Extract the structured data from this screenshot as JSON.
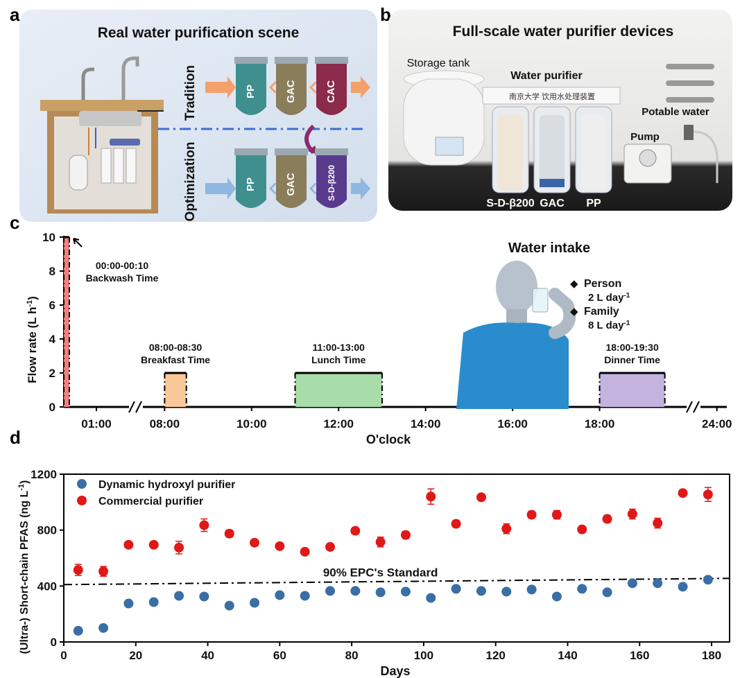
{
  "panel_a": {
    "letter": "a",
    "title": "Real water purification scene",
    "row_top_label": "Tradition",
    "row_bottom_label": "Optimization",
    "top_filters": [
      "PP",
      "GAC",
      "CAC"
    ],
    "bottom_filters": [
      "PP",
      "GAC",
      "S-D-β200"
    ],
    "colors": {
      "pp": "#3f8f8f",
      "gac": "#8a7d5a",
      "cac": "#8b2a4b",
      "sdb": "#5a3a8c",
      "arrow_top": "#f4a06a",
      "arrow_bottom": "#8fb7df"
    }
  },
  "panel_b": {
    "letter": "b",
    "title": "Full-scale water purifier devices",
    "labels": {
      "storage_tank": "Storage tank",
      "water_purifier": "Water purifier",
      "potable_water": "Potable water",
      "pump": "Pump",
      "cart1": "S-D-β200",
      "cart2": "GAC",
      "cart3": "PP"
    },
    "device_header": "南京大学  饮用水处理装置"
  },
  "chart_data": [
    {
      "type": "area",
      "panel": "c",
      "letter": "c",
      "ylabel": "Flow rate (L h",
      "ylabel_sup": "-1",
      "ylabel_close": ")",
      "xlabel": "O'clock",
      "ylim": [
        0,
        10
      ],
      "yticks": [
        "0",
        "2",
        "4",
        "6",
        "8",
        "10"
      ],
      "xticks": [
        "01:00",
        "08:00",
        "10:00",
        "12:00",
        "14:00",
        "16:00",
        "18:00",
        "24:00"
      ],
      "blocks": [
        {
          "label_time": "00:00-00:10",
          "label_name": "Backwash Time",
          "start_h": 0.0,
          "end_h": 0.167,
          "value": 10,
          "color": "#f08080"
        },
        {
          "label_time": "08:00-08:30",
          "label_name": "Breakfast Time",
          "start_h": 8.0,
          "end_h": 8.5,
          "value": 2,
          "color": "#f8c89a"
        },
        {
          "label_time": "11:00-13:00",
          "label_name": "Lunch Time",
          "start_h": 11.0,
          "end_h": 13.0,
          "value": 2,
          "color": "#a8dca8"
        },
        {
          "label_time": "18:00-19:30",
          "label_name": "Dinner Time",
          "start_h": 18.0,
          "end_h": 19.5,
          "value": 2,
          "color": "#c3b3de"
        }
      ],
      "intake": {
        "title": "Water intake",
        "person_label": "Person",
        "person_value": "2 L day",
        "family_label": "Family",
        "family_value": "8 L day",
        "unit_sup": "-1",
        "bullet": "◆"
      }
    },
    {
      "type": "scatter",
      "panel": "d",
      "letter": "d",
      "title": "",
      "xlabel": "Days",
      "ylabel": "(Ultra-) Short-chain PFAS (ng L",
      "ylabel_sup": "-1",
      "ylabel_close": ")",
      "xlim": [
        0,
        185
      ],
      "ylim": [
        0,
        1200
      ],
      "xticks": [
        0,
        20,
        40,
        60,
        80,
        100,
        120,
        140,
        160,
        180
      ],
      "yticks": [
        0,
        400,
        800,
        1200
      ],
      "standard": {
        "label": "90% EPC's Standard",
        "value": 440
      },
      "series": [
        {
          "name": "Dynamic hydroxyl purifier",
          "color": "#3a6ea5",
          "x": [
            4,
            11,
            18,
            25,
            32,
            39,
            46,
            53,
            60,
            67,
            74,
            81,
            88,
            95,
            102,
            109,
            116,
            123,
            130,
            137,
            144,
            151,
            158,
            165,
            172,
            179
          ],
          "y": [
            80,
            100,
            275,
            285,
            330,
            325,
            260,
            280,
            335,
            330,
            365,
            365,
            355,
            360,
            315,
            380,
            365,
            360,
            375,
            325,
            380,
            355,
            420,
            420,
            395,
            445
          ],
          "err": [
            10,
            10,
            10,
            10,
            15,
            10,
            10,
            10,
            10,
            10,
            10,
            10,
            10,
            10,
            10,
            10,
            10,
            10,
            10,
            10,
            10,
            10,
            15,
            15,
            10,
            15
          ]
        },
        {
          "name": "Commercial purifier",
          "color": "#e01818",
          "x": [
            4,
            11,
            18,
            25,
            32,
            39,
            46,
            53,
            60,
            67,
            74,
            81,
            88,
            95,
            102,
            109,
            116,
            123,
            130,
            137,
            144,
            151,
            158,
            165,
            172,
            179
          ],
          "y": [
            515,
            505,
            695,
            695,
            675,
            835,
            775,
            710,
            685,
            645,
            680,
            795,
            715,
            765,
            1040,
            845,
            1035,
            810,
            910,
            910,
            805,
            880,
            915,
            850,
            1065,
            1055
          ],
          "err": [
            40,
            35,
            15,
            20,
            45,
            45,
            25,
            20,
            15,
            20,
            20,
            15,
            35,
            25,
            55,
            25,
            15,
            35,
            25,
            30,
            15,
            25,
            35,
            35,
            20,
            50
          ]
        }
      ]
    }
  ]
}
